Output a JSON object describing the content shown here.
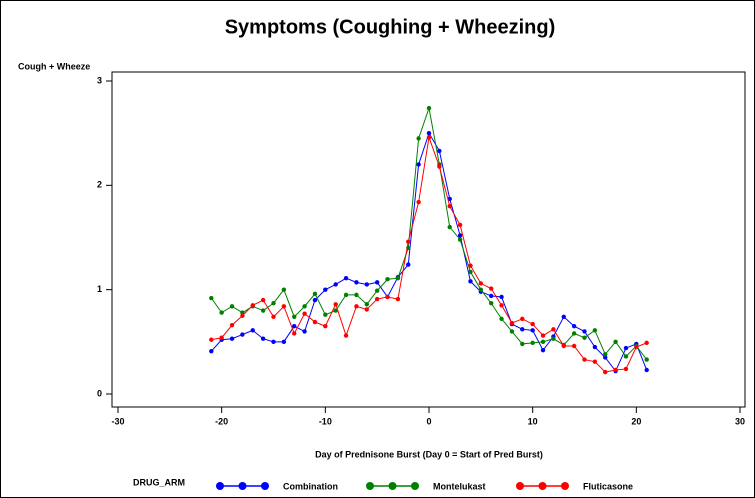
{
  "chart_data": {
    "type": "line",
    "title": "Symptoms (Coughing + Wheezing)",
    "y_label": "Cough + Wheeze",
    "x_label": "Day of Prednisone Burst (Day 0 = Start of Pred Burst)",
    "legend_title": "DRUG_ARM",
    "x": [
      -21,
      -20,
      -19,
      -18,
      -17,
      -16,
      -15,
      -14,
      -13,
      -12,
      -11,
      -10,
      -9,
      -8,
      -7,
      -6,
      -5,
      -4,
      -3,
      -2,
      -1,
      0,
      1,
      2,
      3,
      4,
      5,
      6,
      7,
      8,
      9,
      10,
      11,
      12,
      13,
      14,
      15,
      16,
      17,
      18,
      19,
      20,
      21
    ],
    "series": [
      {
        "name": "Combination",
        "color": "#0000ff",
        "values": [
          0.41,
          0.52,
          0.53,
          0.57,
          0.61,
          0.53,
          0.5,
          0.5,
          0.65,
          0.6,
          0.9,
          1.0,
          1.05,
          1.11,
          1.07,
          1.05,
          1.07,
          0.93,
          1.12,
          1.24,
          2.2,
          2.5,
          2.33,
          1.87,
          1.52,
          1.08,
          0.98,
          0.94,
          0.93,
          0.67,
          0.62,
          0.61,
          0.42,
          0.55,
          0.74,
          0.65,
          0.6,
          0.45,
          0.35,
          0.22,
          0.44,
          0.48,
          0.23
        ]
      },
      {
        "name": "Montelukast",
        "color": "#008000",
        "values": [
          0.92,
          0.78,
          0.84,
          0.78,
          0.84,
          0.8,
          0.87,
          1.0,
          0.74,
          0.84,
          0.96,
          0.76,
          0.8,
          0.95,
          0.95,
          0.86,
          0.99,
          1.1,
          1.11,
          1.4,
          2.45,
          2.74,
          2.2,
          1.6,
          1.48,
          1.17,
          1.0,
          0.87,
          0.72,
          0.6,
          0.48,
          0.49,
          0.5,
          0.53,
          0.47,
          0.58,
          0.54,
          0.61,
          0.38,
          0.5,
          0.36,
          0.46,
          0.33
        ]
      },
      {
        "name": "Fluticasone",
        "color": "#ff0000",
        "values": [
          0.52,
          0.54,
          0.66,
          0.75,
          0.85,
          0.9,
          0.74,
          0.84,
          0.58,
          0.77,
          0.69,
          0.65,
          0.86,
          0.56,
          0.84,
          0.81,
          0.91,
          0.93,
          0.91,
          1.46,
          1.84,
          2.46,
          2.18,
          1.8,
          1.62,
          1.23,
          1.06,
          1.01,
          0.85,
          0.68,
          0.72,
          0.67,
          0.56,
          0.62,
          0.46,
          0.46,
          0.33,
          0.31,
          0.21,
          0.23,
          0.24,
          0.45,
          0.49
        ]
      }
    ],
    "xlim": [
      -30,
      30
    ],
    "xticks": [
      -30,
      -20,
      -10,
      0,
      10,
      20,
      30
    ],
    "ylim": [
      0,
      3
    ],
    "yticks": [
      0,
      1,
      2,
      3
    ]
  }
}
